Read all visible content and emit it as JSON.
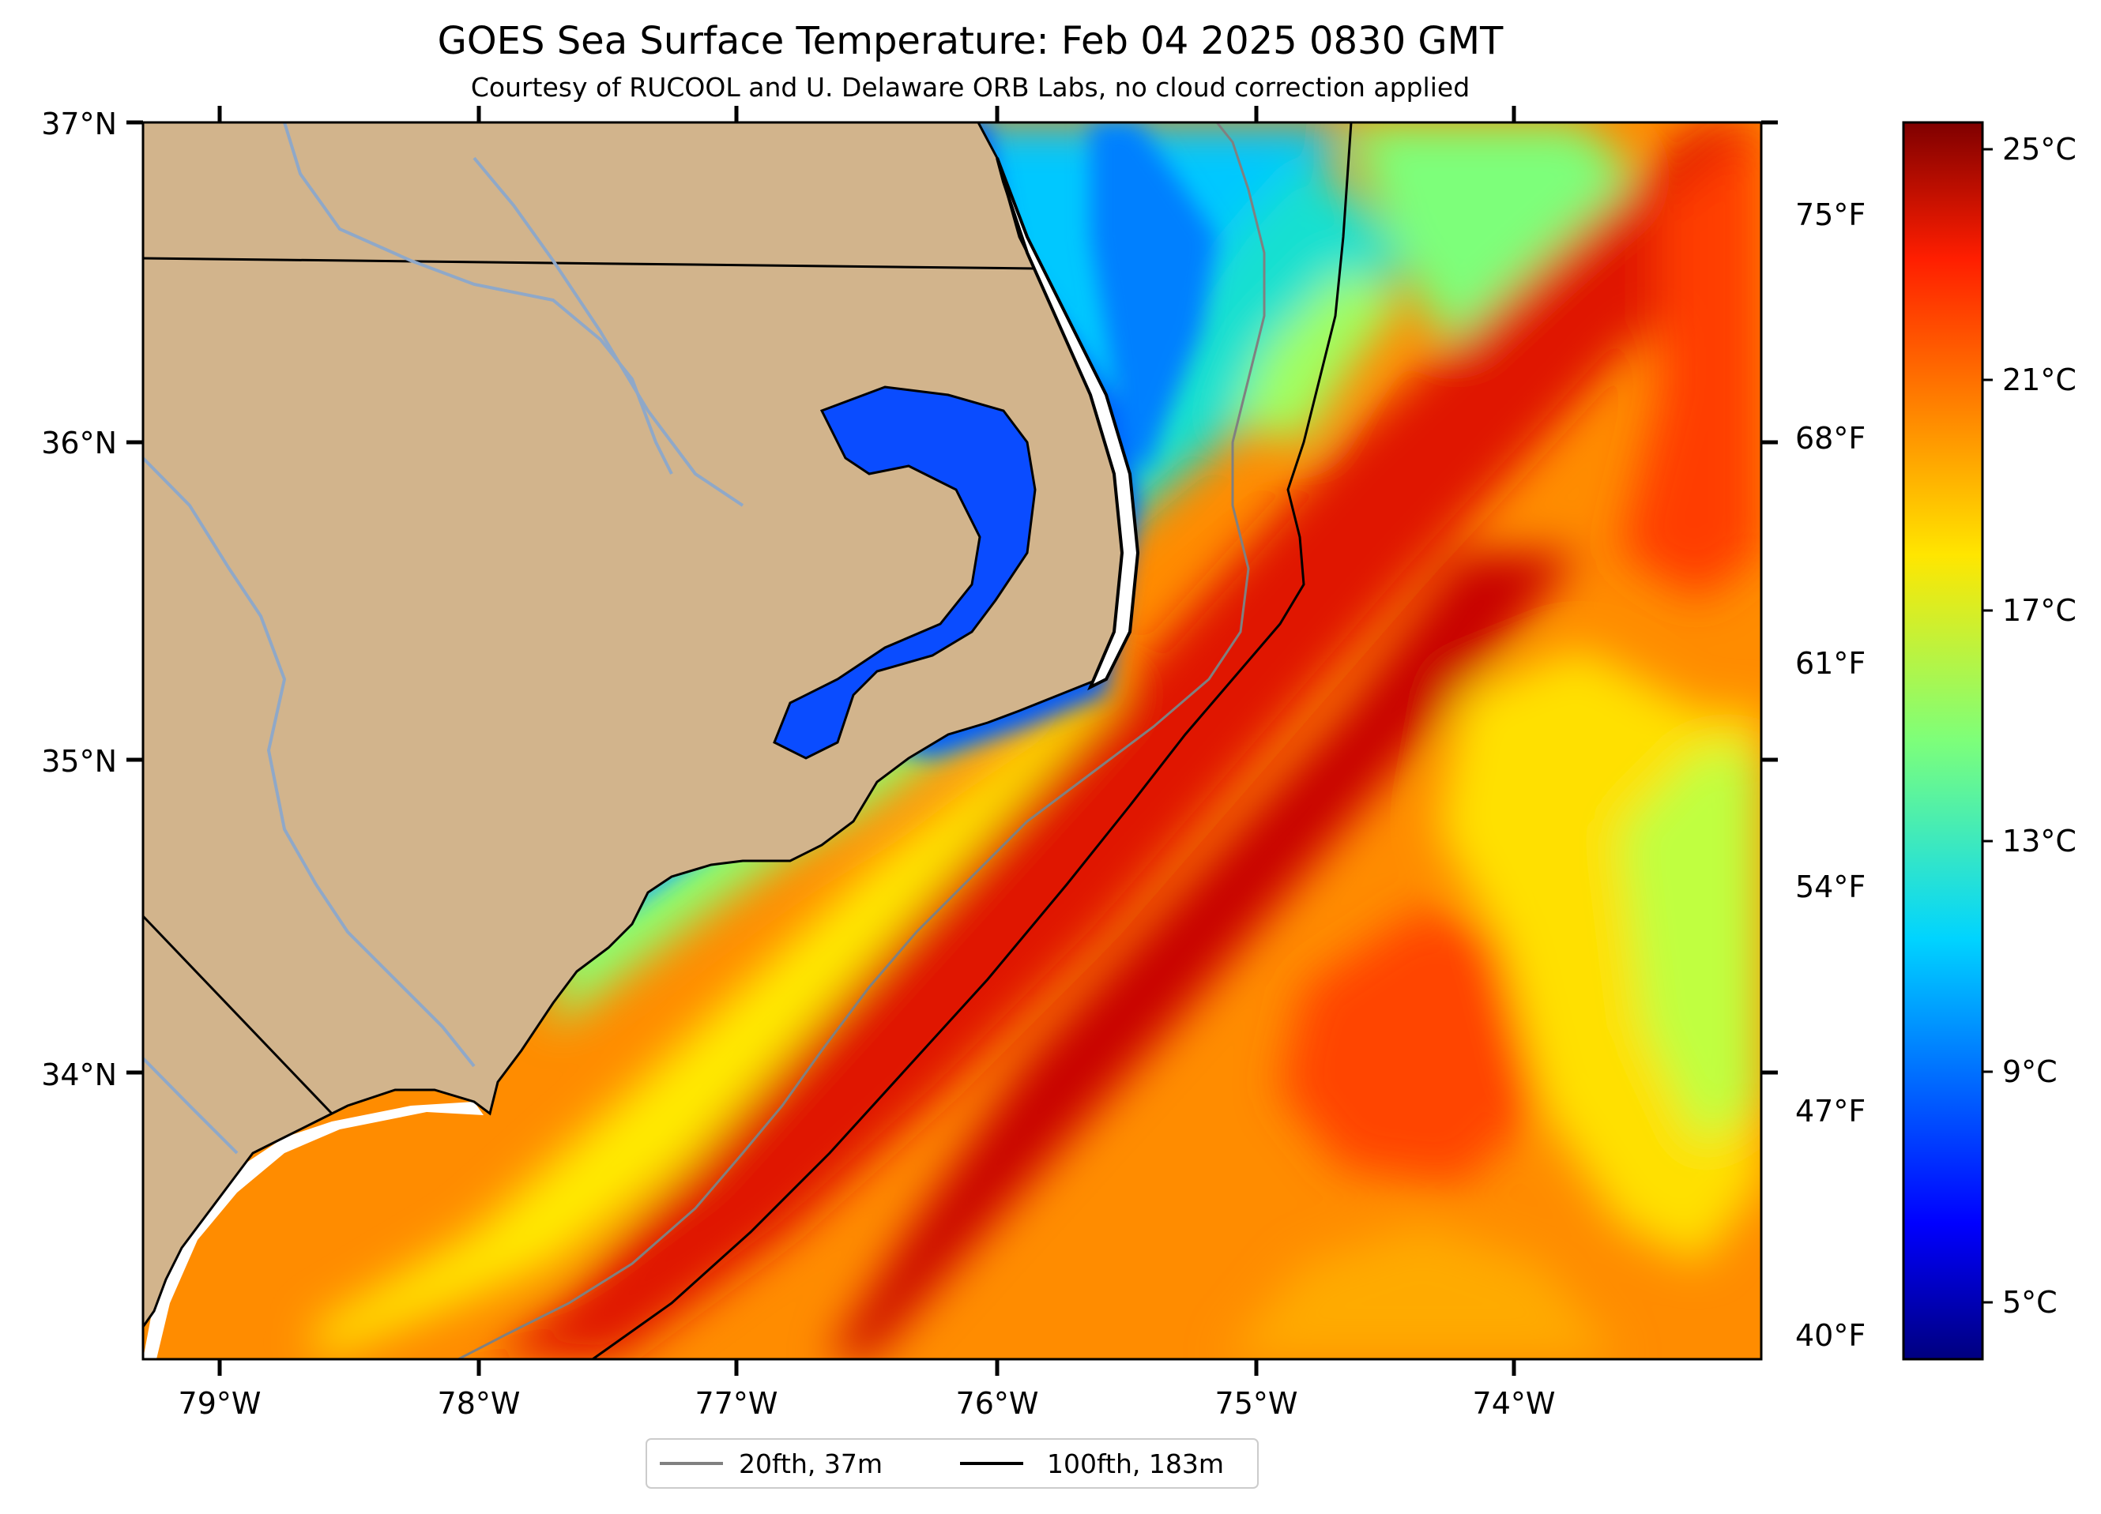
{
  "title": "GOES Sea Surface Temperature: Feb 04 2025 0830 GMT",
  "subtitle": "Courtesy of RUCOOL and U. Delaware ORB Labs, no cloud correction applied",
  "map": {
    "lon_range": [
      -79.28,
      -73.1
    ],
    "lat_range": [
      33.1,
      37.0
    ],
    "lat_labels": [
      "37°N",
      "36°N",
      "35°N",
      "34°N"
    ],
    "lon_labels": [
      "79°W",
      "78°W",
      "77°W",
      "76°W",
      "75°W",
      "74°W"
    ],
    "f_labels": [
      "75°F",
      "68°F",
      "61°F",
      "54°F",
      "47°F",
      "40°F"
    ],
    "land_color": "#d2b48c",
    "river_color": "#8fa8c8"
  },
  "colorbar": {
    "range_c": [
      4,
      25.8
    ],
    "c_labels": [
      "25°C",
      "21°C",
      "17°C",
      "13°C",
      "9°C",
      "5°C"
    ],
    "colormap": "jet"
  },
  "legend": {
    "items": [
      {
        "label": "20fth, 37m",
        "color": "#808080"
      },
      {
        "label": "100fth, 183m",
        "color": "#000000"
      }
    ],
    "placement": "bottom-center"
  }
}
